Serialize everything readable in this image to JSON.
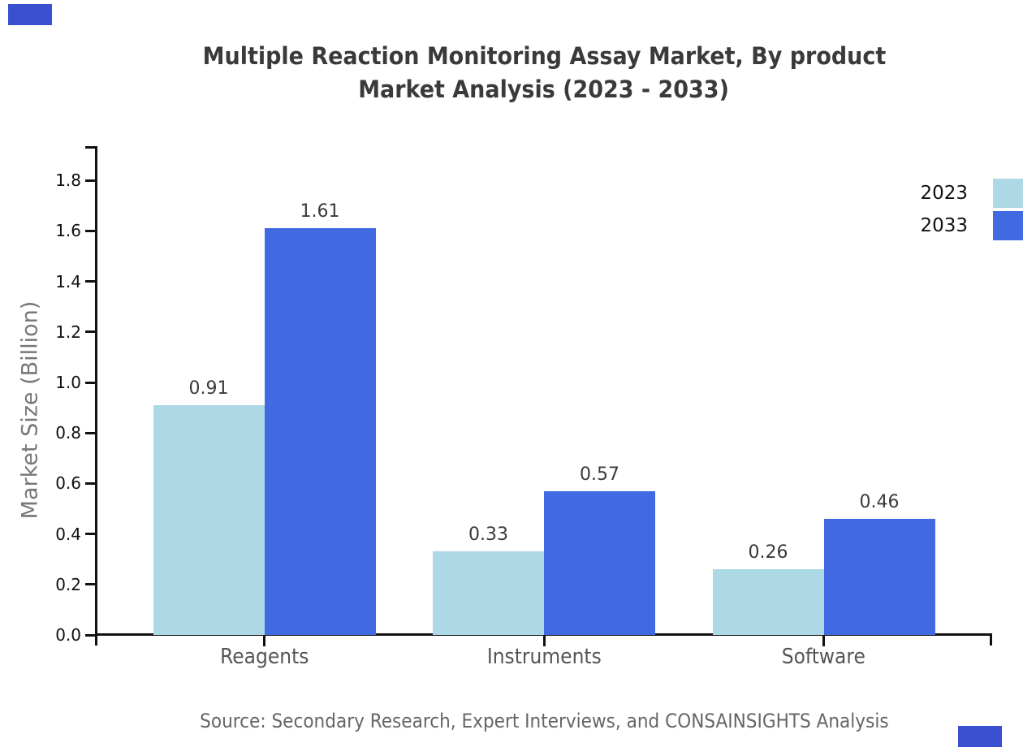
{
  "title": {
    "line1": "Multiple Reaction Monitoring Assay Market, By product",
    "line2": "Market Analysis (2023 - 2033)"
  },
  "source_note": "Source: Secondary Research, Expert Interviews, and CONSAINSIGHTS Analysis",
  "chart_data": {
    "type": "bar",
    "title": "Multiple Reaction Monitoring Assay Market, By product Market Analysis (2023 - 2033)",
    "categories": [
      "Reagents",
      "Instruments",
      "Software"
    ],
    "series": [
      {
        "name": "2023",
        "color": "#add8e6",
        "values": [
          0.91,
          0.33,
          0.26
        ]
      },
      {
        "name": "2033",
        "color": "#4169e1",
        "values": [
          1.61,
          0.57,
          0.46
        ]
      }
    ],
    "xlabel": "",
    "ylabel": "Market Size (Billion)",
    "ylim": [
      0,
      1.93
    ],
    "yticks": [
      0.0,
      0.2,
      0.4,
      0.6,
      0.8,
      1.0,
      1.2,
      1.4,
      1.6,
      1.8
    ],
    "ytick_format_decimals": 1,
    "value_label_decimals": 2,
    "grid": false,
    "legend_position": "right",
    "value_labels": true
  },
  "colors": {
    "corner_square": "#3a50d0",
    "axis": "#111111",
    "title_text": "#3a3a3a",
    "category_label": "#555555",
    "y_axis_label": "#777777",
    "source_text": "#666666"
  }
}
